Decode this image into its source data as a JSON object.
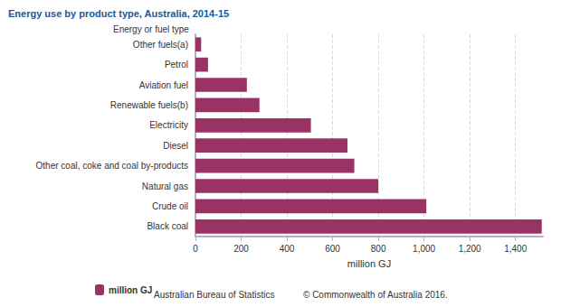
{
  "chart_data": {
    "type": "bar",
    "orientation": "horizontal",
    "title": "Energy use by product type, Australia, 2014-15",
    "y_label": "Energy or fuel type",
    "x_label": "million GJ",
    "categories": [
      "Other fuels(a)",
      "Petrol",
      "Aviation fuel",
      "Renewable fuels(b)",
      "Electricity",
      "Diesel",
      "Other coal, coke and coal by-products",
      "Natural gas",
      "Crude oil",
      "Black coal"
    ],
    "series": [
      {
        "name": "million GJ",
        "color": "#993366",
        "values": [
          25,
          55,
          225,
          280,
          505,
          665,
          695,
          800,
          1010,
          1515
        ]
      }
    ],
    "xlim": [
      0,
      1520
    ],
    "xticks": [
      0,
      200,
      400,
      600,
      800,
      {
        "value": 1000,
        "label": "1,000"
      },
      {
        "value": 1200,
        "label": "1,200"
      },
      {
        "value": 1400,
        "label": "1,400"
      }
    ],
    "grid": true,
    "legend": "bottom-left",
    "annotations": [
      "Australian Bureau of Statistics",
      "© Commonwealth of Australia 2016."
    ]
  }
}
